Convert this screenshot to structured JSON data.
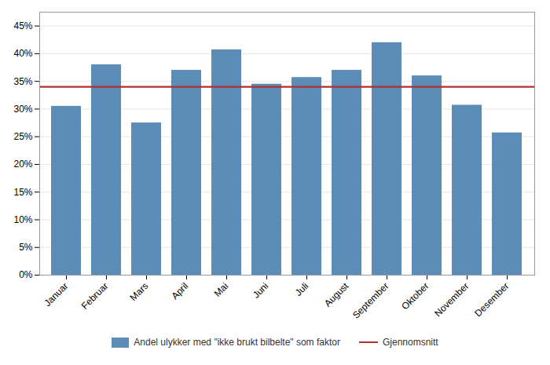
{
  "chart_data": {
    "type": "bar",
    "categories": [
      "Januar",
      "Februar",
      "Mars",
      "April",
      "Mai",
      "Juni",
      "Juli",
      "August",
      "September",
      "Oktober",
      "November",
      "Desember"
    ],
    "series": [
      {
        "name": "Andel ulykker med \"ikke brukt bilbelte\" som faktor",
        "type": "bar",
        "color": "#5B8DB8",
        "values": [
          0.305,
          0.38,
          0.275,
          0.37,
          0.407,
          0.345,
          0.357,
          0.37,
          0.42,
          0.36,
          0.307,
          0.257
        ]
      },
      {
        "name": "Gjennomsnitt",
        "type": "line",
        "color": "#B03030",
        "value": 0.34
      }
    ],
    "ylim": [
      0,
      0.475
    ],
    "yticks": [
      {
        "value": 0.0,
        "label": "0%"
      },
      {
        "value": 0.05,
        "label": "5%"
      },
      {
        "value": 0.1,
        "label": "10%"
      },
      {
        "value": 0.15,
        "label": "15%"
      },
      {
        "value": 0.2,
        "label": "20%"
      },
      {
        "value": 0.25,
        "label": "25%"
      },
      {
        "value": 0.3,
        "label": "30%"
      },
      {
        "value": 0.35,
        "label": "35%"
      },
      {
        "value": 0.4,
        "label": "40%"
      },
      {
        "value": 0.45,
        "label": "45%"
      }
    ],
    "grid": true,
    "legend": "bottom"
  }
}
